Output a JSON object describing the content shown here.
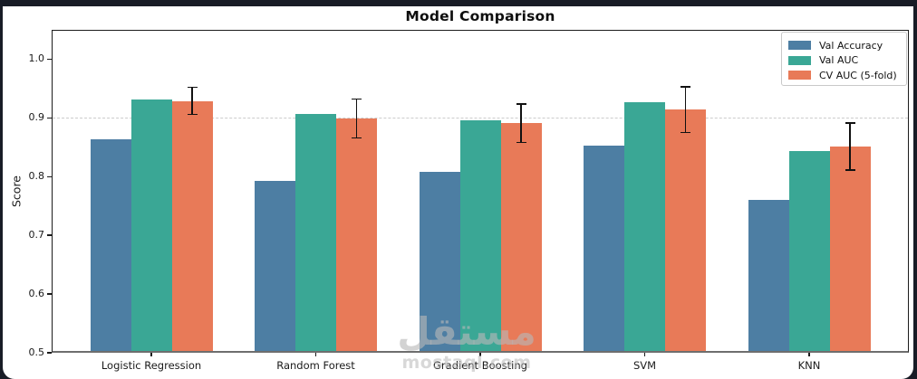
{
  "window": {
    "background_color": "#181c26",
    "figure_background_color": "#ffffff"
  },
  "chart_data": {
    "type": "bar",
    "title": "Model Comparison",
    "xlabel": "",
    "ylabel": "Score",
    "categories": [
      "Logistic Regression",
      "Random Forest",
      "Gradient Boosting",
      "SVM",
      "KNN"
    ],
    "series": [
      {
        "name": "Val Accuracy",
        "color": "#4d7ea3",
        "values": [
          0.864,
          0.792,
          0.808,
          0.853,
          0.76
        ]
      },
      {
        "name": "Val AUC",
        "color": "#3aa795",
        "values": [
          0.932,
          0.907,
          0.896,
          0.926,
          0.844
        ]
      },
      {
        "name": "CV AUC (5-fold)",
        "color": "#e87a58",
        "values": [
          0.929,
          0.899,
          0.891,
          0.914,
          0.851
        ],
        "errors": [
          0.023,
          0.033,
          0.033,
          0.039,
          0.04
        ]
      }
    ],
    "ylim": [
      0.5,
      1.05
    ],
    "yticks": [
      0.5,
      0.6,
      0.7,
      0.8,
      0.9,
      1.0
    ],
    "reference_line": {
      "y": 0.9,
      "style": "dashed",
      "color": "#cccccc"
    },
    "grid": "off",
    "legend_position": "upper right",
    "error_bar_color": "#111111"
  },
  "watermark": {
    "text_arabic": "مستقل",
    "text_latin": "mostaql.com"
  }
}
